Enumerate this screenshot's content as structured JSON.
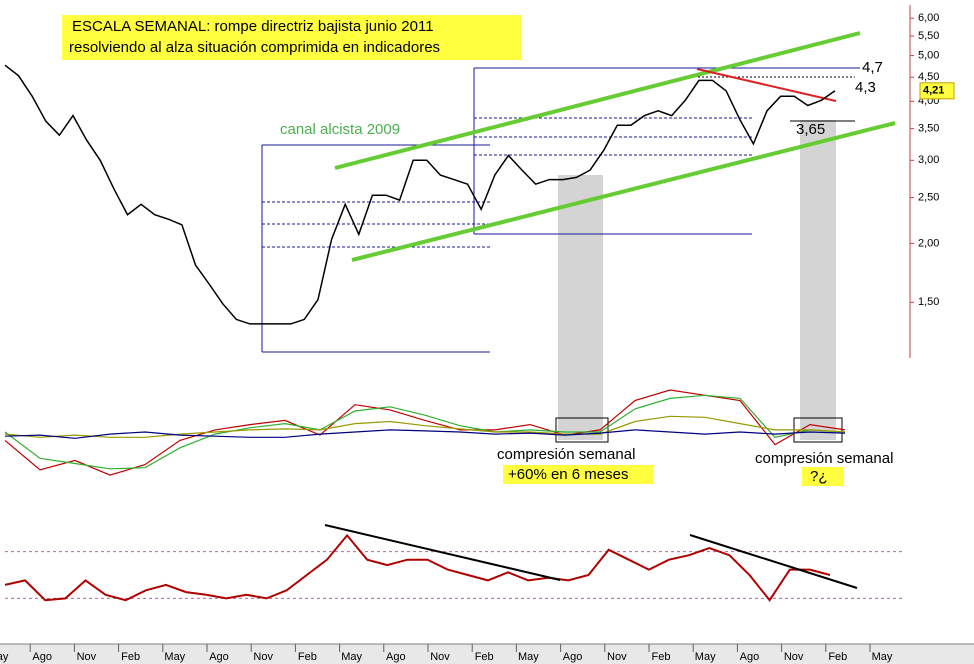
{
  "chart_data": [
    {
      "type": "line",
      "log_scale": true,
      "ylim": [
        1.16,
        6.4
      ],
      "yticks": [
        {
          "value": 1.5,
          "label": "1,50"
        },
        {
          "value": 2,
          "label": "2,00"
        },
        {
          "value": 2.5,
          "label": "2,50"
        },
        {
          "value": 3,
          "label": "3,00"
        },
        {
          "value": 3.5,
          "label": "3,50"
        },
        {
          "value": 4,
          "label": "4,00"
        },
        {
          "value": 4.5,
          "label": "4,50"
        },
        {
          "value": 5,
          "label": "5,00"
        },
        {
          "value": 5.5,
          "label": "5,50"
        },
        {
          "value": 6,
          "label": "6,00"
        }
      ],
      "series": [
        {
          "color": "#000000",
          "values": [
            4.77,
            4.53,
            4.1,
            3.63,
            3.39,
            3.73,
            3.31,
            3.0,
            2.61,
            2.3,
            2.42,
            2.3,
            2.25,
            2.19,
            1.8,
            1.64,
            1.49,
            1.38,
            1.35,
            1.35,
            1.35,
            1.35,
            1.38,
            1.52,
            2.04,
            2.42,
            2.09,
            2.53,
            2.53,
            2.47,
            3.0,
            3.0,
            2.79,
            2.73,
            2.67,
            2.36,
            2.79,
            3.07,
            2.86,
            2.67,
            2.73,
            2.73,
            2.76,
            2.86,
            3.15,
            3.56,
            3.56,
            3.73,
            3.82,
            3.73,
            4.02,
            4.43,
            4.43,
            4.21,
            3.66,
            3.25,
            3.82,
            4.1,
            4.1,
            3.92,
            4.02,
            4.21
          ]
        }
      ],
      "x_axis": {
        "labels": [
          "May",
          "Ago",
          "Nov",
          "Feb",
          "May",
          "Ago",
          "Nov",
          "Feb",
          "May",
          "Ago",
          "Nov",
          "Feb",
          "May",
          "Ago",
          "Nov",
          "Feb",
          "May",
          "Ago",
          "Nov",
          "Feb",
          "May"
        ]
      },
      "last_price": {
        "value": 4.21,
        "label": "4,21"
      }
    },
    {
      "type": "line",
      "ylim": [
        0,
        100
      ],
      "series": [
        {
          "color": "#c00000",
          "values": [
            52,
            24,
            33,
            19,
            29,
            52,
            62,
            67,
            71,
            57,
            86,
            81,
            71,
            62,
            62,
            67,
            57,
            62,
            90,
            100,
            95,
            90,
            48,
            67,
            62
          ]
        },
        {
          "color": "#30b030",
          "values": [
            60,
            35,
            30,
            25,
            26,
            45,
            58,
            64,
            68,
            62,
            80,
            84,
            76,
            66,
            60,
            62,
            60,
            60,
            82,
            92,
            95,
            92,
            55,
            62,
            60
          ]
        },
        {
          "color": "#999900",
          "values": [
            58,
            55,
            57,
            55,
            55,
            58,
            60,
            62,
            63,
            62,
            68,
            70,
            66,
            63,
            60,
            60,
            58,
            58,
            70,
            75,
            74,
            68,
            62,
            62,
            60
          ]
        },
        {
          "color": "#000080",
          "values": [
            56,
            57,
            54,
            58,
            60,
            57,
            56,
            55,
            55,
            58,
            60,
            62,
            61,
            60,
            58,
            59,
            57,
            59,
            62,
            60,
            58,
            60,
            58,
            60,
            59
          ]
        }
      ]
    },
    {
      "type": "line",
      "ylim": [
        0,
        100
      ],
      "hlines": [
        76,
        24
      ],
      "hline_color": "#c060a0",
      "series": [
        {
          "color": "#b00000",
          "values": [
            39,
            44,
            22,
            24,
            44,
            28,
            22,
            33,
            39,
            31,
            28,
            24,
            28,
            24,
            33,
            50,
            67,
            94,
            67,
            61,
            67,
            67,
            56,
            50,
            44,
            53,
            44,
            47,
            44,
            50,
            78,
            67,
            56,
            67,
            72,
            80,
            72,
            50,
            22,
            56,
            56,
            50
          ]
        }
      ]
    }
  ],
  "annotations": {
    "title_line1": "ESCALA SEMANAL: rompe directriz bajista junio 2011",
    "title_line2": "resolviendo al alza situación comprimida en indicadores",
    "channel": "canal alcista 2009",
    "level_high": "4,7",
    "level_mid": "4,3",
    "level_low": "3,65",
    "compression_1": "compresión semanal",
    "compression_1_note": "+60% en 6 meses",
    "compression_2": "compresión semanal",
    "compression_2_note": "?¿"
  }
}
